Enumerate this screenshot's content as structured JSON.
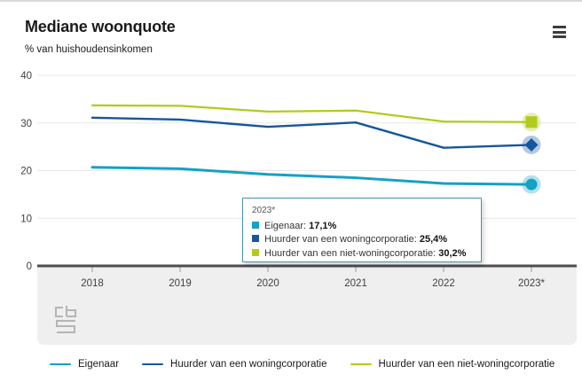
{
  "widget": {
    "title": "Mediane woonquote",
    "subtitle": "% van huishoudensinkomen"
  },
  "icons": {
    "menu": "hamburger-menu-icon",
    "source_logo": "cbs-logo-icon"
  },
  "colors": {
    "accent_teal": "#14a1c6",
    "accent_darkblue": "#15569f",
    "accent_green": "#b2cb1b",
    "axis": "#4d4d4d",
    "tick": "#9a9a9a",
    "grid": "#e8e8e8",
    "axis_band": "#efefef",
    "axis_label": "#404040",
    "tooltip_border": "#4792ab"
  },
  "chart_data": {
    "type": "line",
    "x": [
      "2018",
      "2019",
      "2020",
      "2021",
      "2022",
      "2023*"
    ],
    "series": [
      {
        "name": "Eigenaar",
        "color": "#14a1c6",
        "marker": "circle",
        "values": [
          20.7,
          20.4,
          19.2,
          18.5,
          17.3,
          17.1
        ]
      },
      {
        "name": "Huurder van een woningcorporatie",
        "color": "#15569f",
        "marker": "diamond",
        "values": [
          31.1,
          30.7,
          29.2,
          30.1,
          24.8,
          25.4
        ]
      },
      {
        "name": "Huurder van een niet-woningcorporatie",
        "color": "#b2cb1b",
        "marker": "square",
        "values": [
          33.7,
          33.6,
          32.4,
          32.6,
          30.3,
          30.2
        ]
      }
    ],
    "title": "Mediane woonquote",
    "subtitle": "% van huishoudensinkomen",
    "ylim": [
      0,
      40
    ],
    "yticks": [
      0,
      10,
      20,
      30,
      40
    ],
    "grid": true,
    "legend_position": "bottom"
  },
  "tooltip": {
    "title": "2023*",
    "rows": [
      {
        "label": "Eigenaar:",
        "value": "17,1%",
        "color": "#14a1c6"
      },
      {
        "label": "Huurder van een woningcorporatie:",
        "value": "25,4%",
        "color": "#15569f"
      },
      {
        "label": "Huurder van een niet-woningcorporatie:",
        "value": "30,2%",
        "color": "#b2cb1b"
      }
    ]
  },
  "legend": {
    "items": [
      {
        "label": "Eigenaar",
        "color": "#14a1c6"
      },
      {
        "label": "Huurder van een woningcorporatie",
        "color": "#15569f"
      },
      {
        "label": "Huurder van een niet-woningcorporatie",
        "color": "#b2cb1b"
      }
    ]
  }
}
